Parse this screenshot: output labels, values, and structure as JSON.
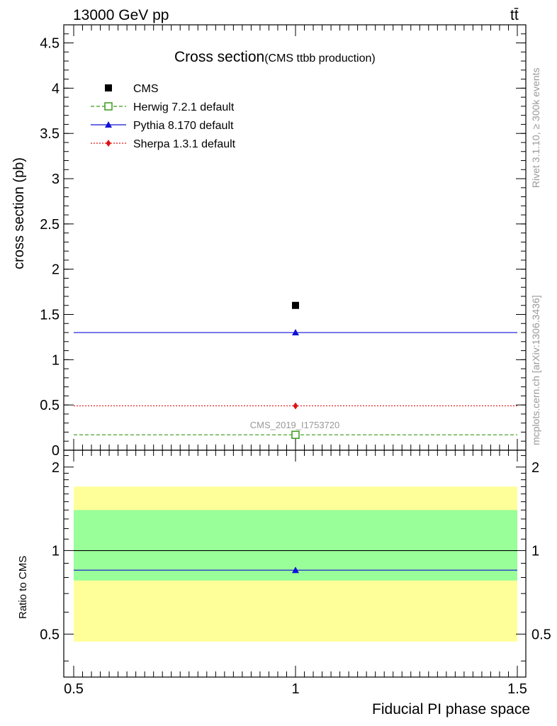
{
  "header": {
    "energy_label": "13000 GeV pp",
    "process_label": "tt̄"
  },
  "side_text": {
    "rivet": "Rivet 3.1.10, ≥ 300k events",
    "mcplots": "mcplots.cern.ch [arXiv:1306.3436]"
  },
  "watermark": "CMS_2019_I1753720",
  "colors": {
    "cms": "#000000",
    "herwig": "#3a9a1a",
    "pythia": "#1010d8",
    "sherpa": "#e01010",
    "band_outer": "#ffff99",
    "band_inner": "#99ff99"
  },
  "chart_data": [
    {
      "type": "scatter",
      "panel": "main",
      "title": "Cross section",
      "subtitle": "(CMS ttbb production)",
      "xlabel": "",
      "ylabel": "cross section (pb)",
      "xlim": [
        0.5,
        1.5
      ],
      "ylim": [
        0,
        4.7
      ],
      "yticks": [
        "0",
        "0.5",
        "1",
        "1.5",
        "2",
        "2.5",
        "3",
        "3.5",
        "4",
        "4.5"
      ],
      "legend_position": "top-left",
      "series": [
        {
          "name": "CMS",
          "marker": "square",
          "x": [
            1.0
          ],
          "values": [
            1.6
          ]
        },
        {
          "name": "Herwig 7.2.1 default",
          "marker": "open-square",
          "line": "dashed",
          "x": [
            1.0
          ],
          "values": [
            0.17
          ]
        },
        {
          "name": "Pythia 8.170 default",
          "marker": "triangle",
          "line": "solid",
          "x": [
            1.0
          ],
          "values": [
            1.3
          ],
          "err": [
            0.03
          ]
        },
        {
          "name": "Sherpa 1.3.1 default",
          "marker": "diamond",
          "line": "dotted",
          "x": [
            1.0
          ],
          "values": [
            0.49
          ]
        }
      ]
    },
    {
      "type": "line",
      "panel": "ratio",
      "xlabel": "Fiducial PI phase space",
      "ylabel": "Ratio to CMS",
      "xlim": [
        0.5,
        1.5
      ],
      "ylim": [
        0.35,
        2.3
      ],
      "xticks": [
        "0.5",
        "1",
        "1.5"
      ],
      "yticks": [
        "0.5",
        "1",
        "2"
      ],
      "bands": [
        {
          "name": "outer",
          "low": 0.47,
          "high": 1.7
        },
        {
          "name": "inner",
          "low": 0.78,
          "high": 1.4
        }
      ],
      "reference": 1.0,
      "series": [
        {
          "name": "Pythia 8.170 default",
          "x": [
            1.0
          ],
          "values": [
            0.85
          ],
          "err": [
            0.02
          ]
        }
      ]
    }
  ]
}
